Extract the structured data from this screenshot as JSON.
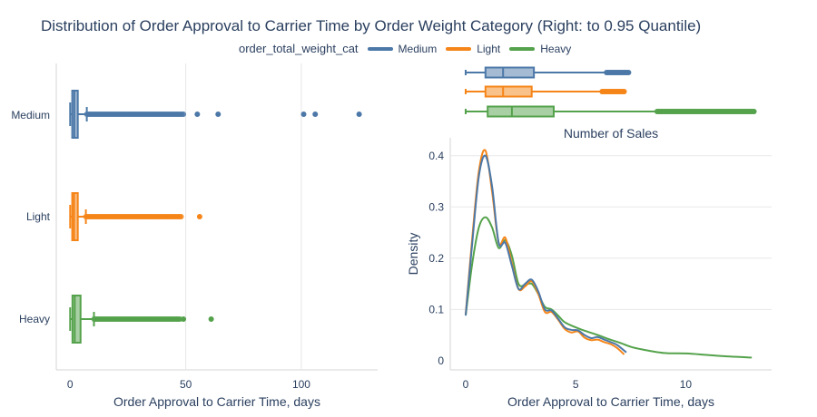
{
  "title": "Distribution of Order Approval to Carrier Time by Order Weight Category (Right: to 0.95 Quantile)",
  "legend": {
    "title": "order_total_weight_cat",
    "items": [
      {
        "name": "Medium",
        "color": "#4c78a8"
      },
      {
        "name": "Light",
        "color": "#f58518"
      },
      {
        "name": "Heavy",
        "color": "#54a24b"
      }
    ]
  },
  "chart_data": [
    {
      "type": "box",
      "orientation": "horizontal",
      "xlabel": "Order Approval to Carrier Time, days",
      "ylabel": "",
      "xlim": [
        -6,
        133
      ],
      "xticks": [
        0,
        50,
        100
      ],
      "categories": [
        "Medium",
        "Light",
        "Heavy"
      ],
      "series": [
        {
          "name": "Medium",
          "color": "#4c78a8",
          "lowerfence": 0,
          "q1": 0.9,
          "median": 1.8,
          "q3": 3.3,
          "upperfence": 7.2,
          "outlier_range": [
            7.2,
            49
          ],
          "outliers": [
            55,
            64,
            101,
            106,
            125
          ]
        },
        {
          "name": "Light",
          "color": "#f58518",
          "lowerfence": 0,
          "q1": 0.9,
          "median": 1.7,
          "q3": 3.3,
          "upperfence": 6.8,
          "outlier_range": [
            6.8,
            48
          ],
          "outliers": [
            56
          ]
        },
        {
          "name": "Heavy",
          "color": "#54a24b",
          "lowerfence": 0,
          "q1": 1.0,
          "median": 2.0,
          "q3": 4.5,
          "upperfence": 10.3,
          "outlier_range": [
            10.3,
            47.5
          ],
          "outliers": [
            49,
            61
          ]
        }
      ]
    },
    {
      "type": "box",
      "orientation": "horizontal",
      "title": "",
      "xlim": [
        -0.7,
        13.9
      ],
      "series": [
        {
          "name": "Medium",
          "color": "#4c78a8",
          "lowerfence": 0,
          "q1": 0.9,
          "median": 1.7,
          "q3": 3.1,
          "upperfence": 6.4,
          "outlier_range": [
            6.4,
            7.4
          ]
        },
        {
          "name": "Light",
          "color": "#f58518",
          "lowerfence": 0,
          "q1": 0.9,
          "median": 1.7,
          "q3": 3.0,
          "upperfence": 6.2,
          "outlier_range": [
            6.2,
            7.2
          ]
        },
        {
          "name": "Heavy",
          "color": "#54a24b",
          "lowerfence": 0,
          "q1": 1.0,
          "median": 2.1,
          "q3": 4.0,
          "upperfence": 8.7,
          "outlier_range": [
            8.7,
            13.1
          ]
        }
      ]
    },
    {
      "type": "line",
      "title": "Number of Sales",
      "xlabel": "Order Approval to Carrier Time, days",
      "ylabel": "Density",
      "xlim": [
        -0.7,
        13.9
      ],
      "ylim": [
        -0.018,
        0.435
      ],
      "xticks": [
        0,
        5,
        10
      ],
      "yticks": [
        0,
        0.1,
        0.2,
        0.3,
        0.4
      ],
      "series": [
        {
          "name": "Light",
          "color": "#f58518",
          "x": [
            0,
            0.3,
            0.6,
            0.9,
            1.2,
            1.5,
            1.8,
            2.1,
            2.4,
            2.7,
            3.0,
            3.3,
            3.6,
            3.9,
            4.2,
            4.5,
            4.8,
            5.1,
            5.4,
            5.7,
            6.0,
            6.3,
            6.6,
            6.9,
            7.2
          ],
          "y": [
            0.09,
            0.24,
            0.37,
            0.41,
            0.33,
            0.23,
            0.24,
            0.19,
            0.14,
            0.145,
            0.155,
            0.13,
            0.095,
            0.095,
            0.08,
            0.062,
            0.055,
            0.057,
            0.045,
            0.04,
            0.041,
            0.036,
            0.032,
            0.024,
            0.012
          ]
        },
        {
          "name": "Medium",
          "color": "#4c78a8",
          "x": [
            0,
            0.3,
            0.6,
            0.9,
            1.2,
            1.5,
            1.8,
            2.1,
            2.4,
            2.7,
            3.0,
            3.3,
            3.6,
            3.9,
            4.2,
            4.5,
            4.8,
            5.1,
            5.4,
            5.7,
            6.0,
            6.3,
            6.6,
            6.9,
            7.3
          ],
          "y": [
            0.088,
            0.23,
            0.36,
            0.4,
            0.34,
            0.23,
            0.23,
            0.185,
            0.14,
            0.15,
            0.158,
            0.135,
            0.1,
            0.098,
            0.082,
            0.065,
            0.06,
            0.059,
            0.05,
            0.044,
            0.046,
            0.041,
            0.036,
            0.03,
            0.016
          ]
        },
        {
          "name": "Heavy",
          "color": "#54a24b",
          "x": [
            0,
            0.3,
            0.6,
            0.9,
            1.2,
            1.5,
            1.8,
            2.1,
            2.4,
            2.7,
            3.0,
            3.3,
            3.6,
            3.9,
            4.2,
            4.5,
            5.0,
            5.5,
            6.0,
            6.5,
            7.0,
            7.5,
            8.0,
            9.0,
            10.0,
            11.0,
            12.0,
            13.0
          ],
          "y": [
            0.088,
            0.19,
            0.26,
            0.28,
            0.26,
            0.22,
            0.235,
            0.205,
            0.15,
            0.148,
            0.15,
            0.13,
            0.105,
            0.1,
            0.088,
            0.075,
            0.065,
            0.057,
            0.05,
            0.042,
            0.035,
            0.027,
            0.022,
            0.015,
            0.014,
            0.011,
            0.008,
            0.006
          ]
        }
      ]
    }
  ]
}
